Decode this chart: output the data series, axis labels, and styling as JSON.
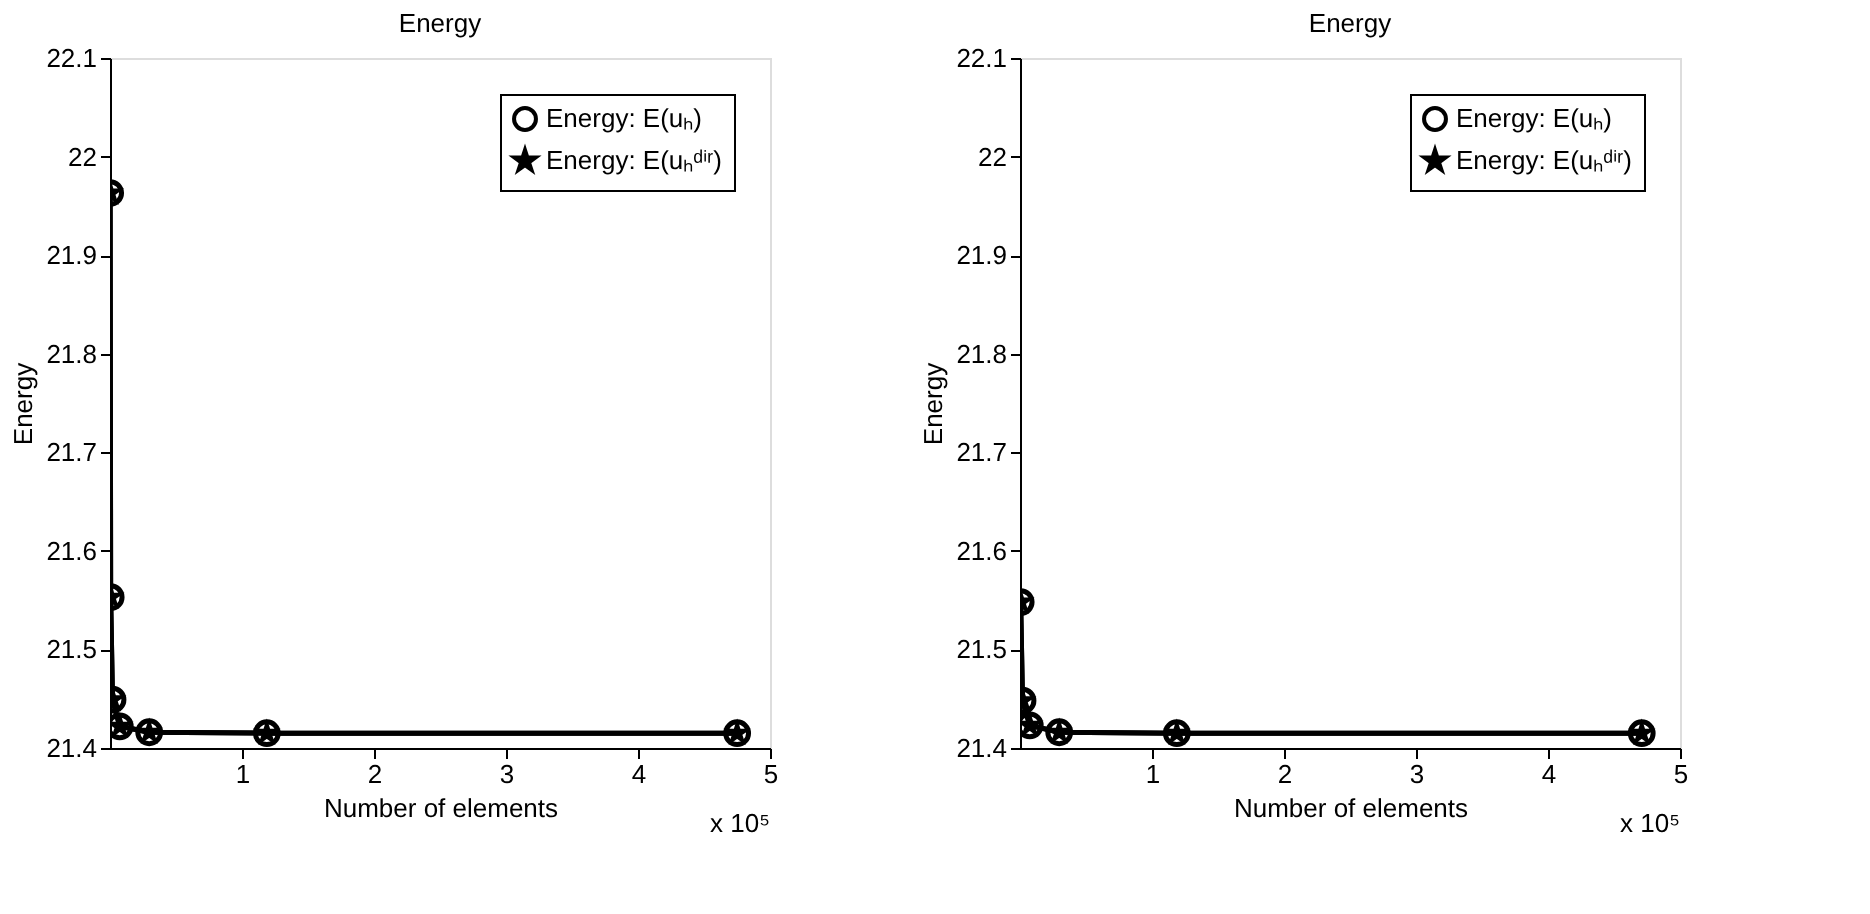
{
  "chart_data": [
    {
      "type": "line",
      "title": "Energy",
      "xlabel": "Number of elements",
      "ylabel": "Energy",
      "x": [
        0.001,
        0.005,
        0.019,
        0.074,
        0.297,
        1.188,
        4.751
      ],
      "xlim": [
        0,
        5
      ],
      "xticks": [
        1,
        2,
        3,
        4,
        5
      ],
      "series": [
        {
          "name": "Energy: E(uₕ)",
          "color": "#000000",
          "marker": "circle",
          "values": [
            21.963,
            21.553,
            21.449,
            21.422,
            21.416,
            21.415,
            21.415
          ]
        },
        {
          "name": "Energy: E(uₕᵈⁱʳ)",
          "color": "#000000",
          "marker": "star",
          "values": [
            21.963,
            21.553,
            21.449,
            21.422,
            21.416,
            21.415,
            21.415
          ]
        }
      ],
      "ylim": [
        21.4,
        22.1
      ],
      "yticks": [
        21.4,
        21.5,
        21.6,
        21.7,
        21.8,
        21.9,
        22,
        22.1
      ],
      "grid": false,
      "legend": "top right",
      "line_style": "solid",
      "annotations": [
        "x 10⁵"
      ]
    },
    {
      "type": "line",
      "title": "Energy",
      "xlabel": "Number of elements",
      "ylabel": "Energy",
      "x": [
        0.005,
        0.019,
        0.074,
        0.297,
        1.188,
        4.71
      ],
      "xlim": [
        0,
        5
      ],
      "xticks": [
        1,
        2,
        3,
        4,
        5
      ],
      "series": [
        {
          "name": "Energy: E(uₕ)",
          "color": "#000000",
          "marker": "circle",
          "values": [
            21.548,
            21.448,
            21.423,
            21.416,
            21.415,
            21.415
          ]
        },
        {
          "name": "Energy: E(uₕᵈⁱʳ)",
          "color": "#000000",
          "marker": "star",
          "values": [
            21.548,
            21.448,
            21.423,
            21.416,
            21.415,
            21.415
          ]
        }
      ],
      "ylim": [
        21.4,
        22.1
      ],
      "yticks": [
        21.4,
        21.5,
        21.6,
        21.7,
        21.8,
        21.9,
        22,
        22.1
      ],
      "grid": false,
      "legend": "top right",
      "line_style": "solid",
      "annotations": [
        "x 10⁵"
      ]
    }
  ]
}
